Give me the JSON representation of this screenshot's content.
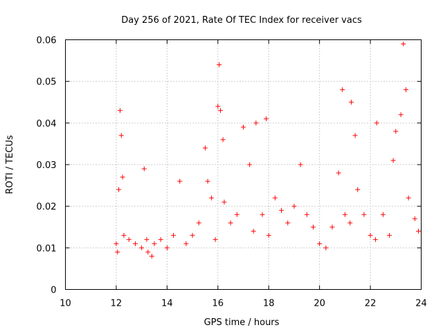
{
  "chart_data": {
    "type": "scatter",
    "title": "Day 256 of 2021, Rate Of TEC Index for receiver vacs",
    "xlabel": "GPS time / hours",
    "ylabel": "ROTI / TECUs",
    "xlim": [
      10,
      24
    ],
    "ylim": [
      0,
      0.06
    ],
    "x_ticks": [
      10,
      12,
      14,
      16,
      18,
      20,
      22,
      24
    ],
    "x_tick_labels": [
      "10",
      "12",
      "14",
      "16",
      "18",
      "20",
      "22",
      "24"
    ],
    "y_ticks": [
      0,
      0.01,
      0.02,
      0.03,
      0.04,
      0.05,
      0.06
    ],
    "y_tick_labels": [
      "0",
      "0.01",
      "0.02",
      "0.03",
      "0.04",
      "0.05",
      "0.06"
    ],
    "grid": true,
    "marker": "+",
    "color": "#ff0000",
    "series": [
      {
        "name": "ROTI",
        "x": [
          12.0,
          12.05,
          12.1,
          12.15,
          12.2,
          12.25,
          12.3,
          12.5,
          12.75,
          13.0,
          13.1,
          13.2,
          13.25,
          13.4,
          13.5,
          13.75,
          14.0,
          14.25,
          14.5,
          14.75,
          15.0,
          15.25,
          15.5,
          15.6,
          15.75,
          15.9,
          16.0,
          16.05,
          16.1,
          16.2,
          16.25,
          16.5,
          16.75,
          17.0,
          17.25,
          17.4,
          17.5,
          17.75,
          17.9,
          18.0,
          18.25,
          18.5,
          18.75,
          19.0,
          19.25,
          19.5,
          19.75,
          20.0,
          20.25,
          20.5,
          20.75,
          20.9,
          21.0,
          21.2,
          21.25,
          21.4,
          21.5,
          21.75,
          22.0,
          22.2,
          22.25,
          22.5,
          22.75,
          22.9,
          23.0,
          23.2,
          23.3,
          23.4,
          23.5,
          23.75,
          24.0
        ],
        "y": [
          0.011,
          0.009,
          0.024,
          0.043,
          0.037,
          0.027,
          0.013,
          0.012,
          0.011,
          0.01,
          0.029,
          0.012,
          0.009,
          0.008,
          0.011,
          0.012,
          0.01,
          0.013,
          0.026,
          0.011,
          0.013,
          0.016,
          0.034,
          0.026,
          0.022,
          0.012,
          0.044,
          0.054,
          0.043,
          0.036,
          0.021,
          0.016,
          0.018,
          0.039,
          0.03,
          0.014,
          0.04,
          0.018,
          0.041,
          0.013,
          0.022,
          0.019,
          0.016,
          0.02,
          0.03,
          0.018,
          0.015,
          0.011,
          0.01,
          0.015,
          0.028,
          0.048,
          0.018,
          0.016,
          0.045,
          0.037,
          0.024,
          0.018,
          0.013,
          0.012,
          0.04,
          0.018,
          0.013,
          0.031,
          0.038,
          0.042,
          0.059,
          0.048,
          0.022,
          0.017,
          0.014
        ]
      }
    ]
  }
}
